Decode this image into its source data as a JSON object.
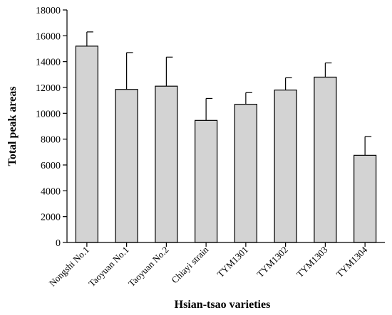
{
  "chart_data": {
    "type": "bar",
    "title": "",
    "xlabel": "Hsian-tsao varieties",
    "ylabel": "Total peak areas",
    "ylim": [
      0,
      18000
    ],
    "yticks": [
      0,
      2000,
      4000,
      6000,
      8000,
      10000,
      12000,
      14000,
      16000,
      18000
    ],
    "grid": false,
    "legend": "none",
    "categories": [
      "Nongshi No.1",
      "Taoyuan No.1",
      "Taoyuan No.2",
      "Chiayi strain",
      "TYM1301",
      "TYM1302",
      "TYM1303",
      "TYM1304"
    ],
    "values": [
      15200,
      11850,
      12100,
      9450,
      10700,
      11800,
      12800,
      6750
    ],
    "errors": [
      1100,
      2850,
      2250,
      1700,
      900,
      950,
      1100,
      1450
    ],
    "bar_color": "#d3d3d3",
    "edge_color": "#000000"
  }
}
